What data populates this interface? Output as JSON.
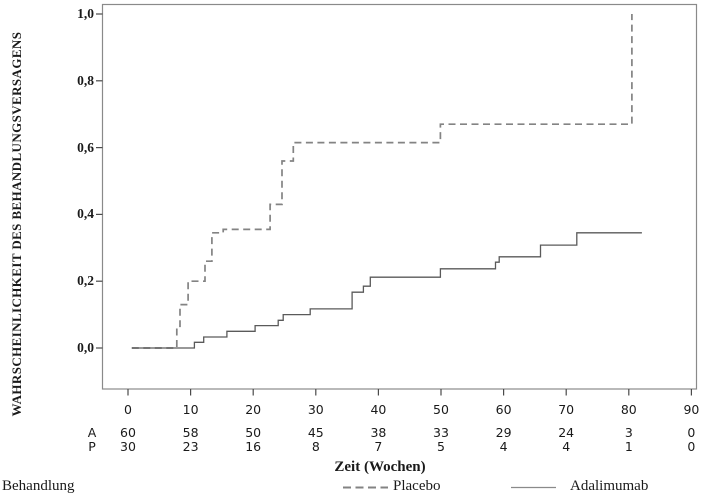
{
  "chart_data": {
    "type": "line",
    "subtype": "kaplan-meier-step",
    "title": "",
    "xlabel": "Zeit (Wochen)",
    "ylabel": "WAHRSCHEINLICHKEIT DES BEHANDLUNGSVERSAGENS",
    "xlim": [
      0,
      90
    ],
    "ylim": [
      0.0,
      1.0
    ],
    "grid": false,
    "x_ticks": [
      {
        "label": "0",
        "value": 0
      },
      {
        "label": "10",
        "value": 10
      },
      {
        "label": "20",
        "value": 20
      },
      {
        "label": "30",
        "value": 30
      },
      {
        "label": "40",
        "value": 40
      },
      {
        "label": "50",
        "value": 50
      },
      {
        "label": "60",
        "value": 60
      },
      {
        "label": "70",
        "value": 70
      },
      {
        "label": "80",
        "value": 80
      },
      {
        "label": "90",
        "value": 90
      }
    ],
    "y_ticks": [
      {
        "label": "0,0",
        "value": 0.0
      },
      {
        "label": "0,2",
        "value": 0.2
      },
      {
        "label": "0,4",
        "value": 0.4
      },
      {
        "label": "0,6",
        "value": 0.6
      },
      {
        "label": "0,8",
        "value": 0.8
      },
      {
        "label": "1,0",
        "value": 1.0
      }
    ],
    "series": [
      {
        "name": "Placebo",
        "line_style": "dashed",
        "color": "#838383",
        "points": [
          [
            0.6,
            0.0
          ],
          [
            7.8,
            0.065
          ],
          [
            8.3,
            0.13
          ],
          [
            9.6,
            0.2
          ],
          [
            12.3,
            0.26
          ],
          [
            13.4,
            0.345
          ],
          [
            15.2,
            0.355
          ],
          [
            22.7,
            0.43
          ],
          [
            24.6,
            0.56
          ],
          [
            26.4,
            0.615
          ],
          [
            49.9,
            0.67
          ],
          [
            80.5,
            1.0
          ]
        ],
        "end_week": 80.5
      },
      {
        "name": "Adalimumab",
        "line_style": "solid",
        "color": "#5a5a5a",
        "points": [
          [
            0.6,
            0.0
          ],
          [
            10.6,
            0.017
          ],
          [
            12.1,
            0.033
          ],
          [
            15.8,
            0.05
          ],
          [
            20.3,
            0.067
          ],
          [
            24.0,
            0.083
          ],
          [
            24.8,
            0.1
          ],
          [
            29.1,
            0.117
          ],
          [
            35.8,
            0.167
          ],
          [
            37.6,
            0.185
          ],
          [
            38.7,
            0.212
          ],
          [
            49.9,
            0.237
          ],
          [
            58.7,
            0.257
          ],
          [
            59.3,
            0.273
          ],
          [
            65.9,
            0.308
          ],
          [
            71.7,
            0.345
          ]
        ],
        "end_week": 82.1
      }
    ],
    "at_risk_table": {
      "rows": [
        {
          "label": "A",
          "counts": [
            "60",
            "58",
            "50",
            "45",
            "38",
            "33",
            "29",
            "24",
            "3",
            "0"
          ]
        },
        {
          "label": "P",
          "counts": [
            "30",
            "23",
            "16",
            "8",
            "7",
            "5",
            "4",
            "4",
            "1",
            "0"
          ]
        }
      ]
    },
    "legend": {
      "title": "Behandlung",
      "position": "bottom",
      "entries": [
        {
          "label": "Placebo",
          "line_style": "dashed"
        },
        {
          "label": "Adalimumab",
          "line_style": "solid"
        }
      ]
    }
  },
  "colors": {
    "background": "#ffffff",
    "axis_box": "#8a8a8a",
    "tick": "#4a4a4a",
    "text": "#1a1a1a"
  }
}
